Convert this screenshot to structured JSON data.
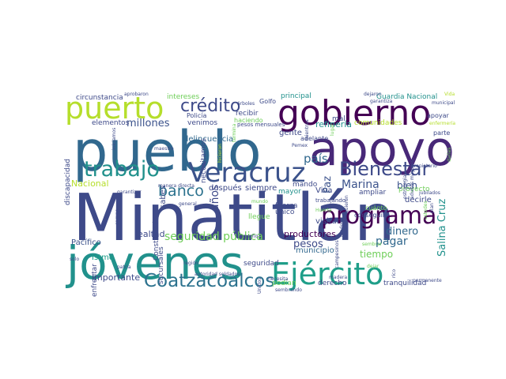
{
  "palette": {
    "dark_purple": "#440154",
    "indigo": "#3b528b",
    "slate_blue": "#3e4a89",
    "steel_blue": "#31688e",
    "teal": "#21918c",
    "sea_green": "#1f9e89",
    "green": "#35b779",
    "light_green": "#6ece58",
    "yellow_green": "#b5de2b",
    "yellow": "#fde725",
    "white": "#ffffff"
  },
  "words": [
    "Minatitlán",
    "pueblo",
    "apoyo",
    "jóvenes",
    "gobierno",
    "puerto",
    "Veracruz",
    "Ejército",
    "programa",
    "trabajo",
    "Bienestar",
    "Coatzacoalcos",
    "crédito",
    "banco",
    "millones",
    "seguridad pública",
    "Marina",
    "país",
    "bien",
    "pagar",
    "dinero",
    "tiempo",
    "pesos",
    "años",
    "Salina Cruz",
    "Paz",
    "Nacional",
    "importante",
    "refinería",
    "Guardia Nacional",
    "circunstancia",
    "intereses",
    "principal",
    "Istmo",
    "Pacífico",
    "productores",
    "lealtad",
    "decirle",
    "apoyar",
    "elementos",
    "Policía",
    "gente",
    "después",
    "siempre",
    "mando",
    "delincuencia",
    "necesitamos",
    "venimos",
    "recibir",
    "haciendo",
    "Golfo",
    "municipio",
    "seguridad",
    "derecho",
    "podían",
    "tranquilidad",
    "Viva",
    "visitar",
    "fuerza",
    "único",
    "llegue",
    "mayor",
    "sabes",
    "discapacidad",
    "Constitución",
    "enfrentar",
    "sucursales",
    "ampliar",
    "proyecto",
    "comunidades",
    "cuánto",
    "conseguir",
    "pesos mensuales",
    "parte",
    "región",
    "autoridad soldados",
    "aprobaron",
    "dejaron",
    "municipal",
    "enfermería",
    "jubilados",
    "adultos mayores",
    "estrategia",
    "propietario",
    "sembrar",
    "dejar",
    "patria",
    "maestro",
    "trabajando",
    "Pemex",
    "necesita",
    "Huerta",
    "mal",
    "Vida",
    "solo",
    "lugar",
    "Unidos",
    "iniciamos",
    "darles",
    "estudian",
    "coordinación",
    "manera directa",
    "campo",
    "permanente",
    "garantizar",
    "general",
    "mundo",
    "pequeño",
    "hicieron",
    "adelante",
    "árboles",
    "termina",
    "mientras",
    "sembrando",
    "campesinos",
    "madera",
    "garantiza",
    "quieren",
    "ustedes",
    "plan",
    "rico"
  ]
}
